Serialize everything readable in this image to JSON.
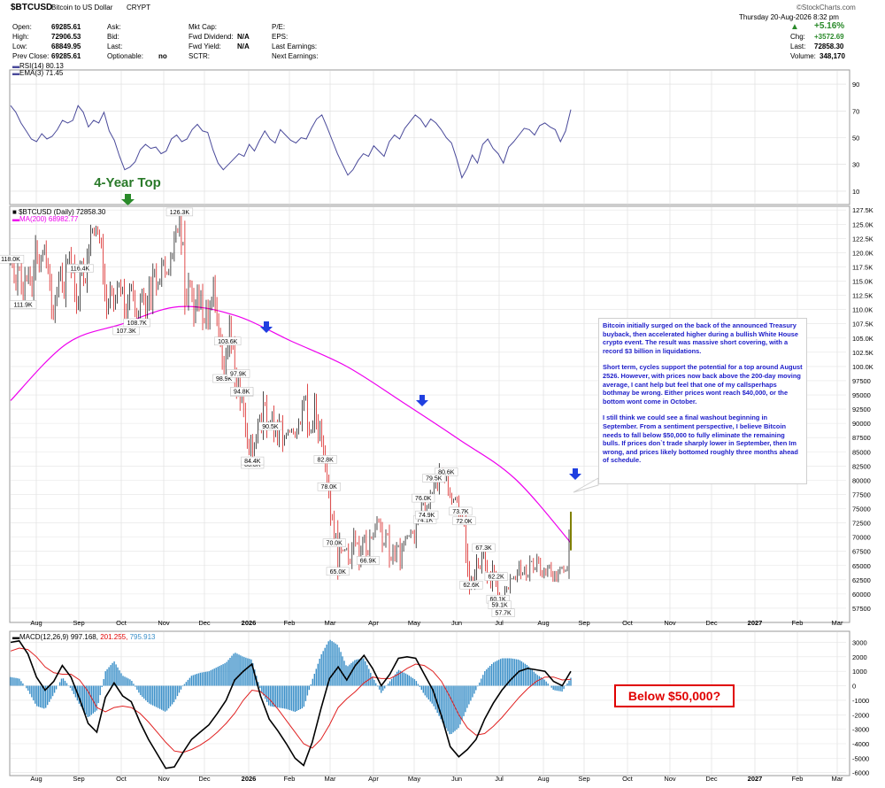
{
  "header": {
    "symbol": "$BTCUSD",
    "name": "Bitcoin to US Dollar",
    "exchange": "CRYPT",
    "brand": "©StockCharts.com",
    "datetime": "Thursday  20-Aug-2026  8:32 pm",
    "open_label": "Open:",
    "open": "69285.61",
    "high_label": "High:",
    "high": "72906.53",
    "low_label": "Low:",
    "low": "68849.95",
    "prev_label": "Prev Close:",
    "prev": "69285.61",
    "ask_label": "Ask:",
    "bid_label": "Bid:",
    "last_label": "Last:",
    "optionable_label": "Optionable:",
    "optionable": "no",
    "mktcap_label": "Mkt Cap:",
    "fwddiv_label": "Fwd Dividend:",
    "fwddiv": "N/A",
    "fwdyield_label": "Fwd Yield:",
    "fwdyield": "N/A",
    "sctr_label": "SCTR:",
    "pe_label": "P/E:",
    "eps_label": "EPS:",
    "lastearn_label": "Last Earnings:",
    "nextearn_label": "Next Earnings:",
    "pct_change": "+5.16%",
    "chg_label": "Chg:",
    "chg": "+3572.69",
    "last_price_label": "Last:",
    "last_price": "72858.30",
    "volume_label": "Volume:",
    "volume": "348,170"
  },
  "annotation_top": "4-Year Top",
  "note": {
    "p1": "Bitcoin initially surged on the back of the announced Treasury buyback, then accelerated higher during a bullish White House crypto event. The result was massive short covering, with a record $3 billion in liquidations.",
    "p2": "Short term, cycles support the potential for a top around August 2526. However, with prices now back above the 200-day moving average, I cant help but feel that one of my callsperhaps bothmay be wrong. Either prices wont reach $40,000, or the bottom wont come in October.",
    "p3": "I still think we could see a final washout beginning in September. From a sentiment perspective, I believe Bitcoin needs to fall below $50,000 to fully eliminate the remaining bulls. If prices don`t trade sharply lower in September, then Im wrong, and prices likely bottomed roughly three months ahead of schedule."
  },
  "below_label": "Below $50,000?",
  "colors": {
    "rsi": "#4a4a9a",
    "ma": "#ee00ee",
    "up": "#000000",
    "down": "#d40000",
    "hist": "#3a8fc8",
    "arrow_blue": "#1f3fe0",
    "arrow_green": "#2a8a2a",
    "title_green": "#2a7a2a",
    "last_bar": "#c8c800"
  },
  "chart_data": [
    {
      "type": "line",
      "title": "RSI(14) 80.13",
      "series": [
        {
          "name": "EMA(3) 71.45",
          "values": [
            74,
            69,
            61,
            55,
            49,
            47,
            53,
            49,
            51,
            56,
            63,
            61,
            63,
            74,
            69,
            58,
            63,
            61,
            69,
            55,
            48,
            36,
            26,
            28,
            32,
            41,
            45,
            42,
            43,
            38,
            40,
            49,
            52,
            47,
            49,
            56,
            60,
            55,
            54,
            41,
            31,
            26,
            30,
            34,
            38,
            36,
            45,
            40,
            48,
            55,
            49,
            46,
            56,
            52,
            48,
            46,
            50,
            49,
            57,
            64,
            67,
            58,
            48,
            38,
            30,
            22,
            26,
            33,
            38,
            36,
            44,
            40,
            36,
            47,
            52,
            49,
            57,
            62,
            67,
            64,
            58,
            64,
            61,
            56,
            50,
            46,
            34,
            20,
            27,
            37,
            31,
            45,
            49,
            42,
            38,
            31,
            43,
            47,
            52,
            57,
            56,
            52,
            59,
            61,
            58,
            56,
            47,
            55,
            71
          ]
        }
      ],
      "ylim": [
        0,
        100
      ],
      "yticks": [
        10,
        30,
        50,
        70,
        90
      ]
    },
    {
      "type": "candlestick",
      "title": "$BTCUSD (Daily) 72858.30",
      "ma_label": "MA(200) 68982.77",
      "close": [
        118000,
        117500,
        115500,
        114000,
        117400,
        117000,
        114000,
        112000,
        115800,
        115200,
        116800,
        115000,
        113100,
        117000,
        121200,
        119000,
        117300,
        118900,
        120000,
        121000,
        118400,
        116900,
        114400,
        110200,
        108800,
        111400,
        113200,
        115600,
        117000,
        114200,
        112600,
        117500,
        118500,
        119700,
        116800,
        117700,
        113300,
        110500,
        111800,
        116500,
        117900,
        115300,
        114800,
        118900,
        120700,
        123600,
        124100,
        123300,
        124300,
        123500,
        122200,
        121200,
        116500,
        113000,
        109800,
        111300,
        113800,
        112800,
        110600,
        112000,
        114100,
        114600,
        113000,
        113700,
        109900,
        107300,
        111000,
        113500,
        114200,
        112300,
        109800,
        108700,
        109500,
        111800,
        113100,
        111500,
        108400,
        111200,
        114400,
        111300,
        116000,
        116800,
        113800,
        114600,
        115200,
        117900,
        118500,
        116500,
        116300,
        116900,
        119100,
        119700,
        122500,
        124100,
        123700,
        125700,
        121500,
        121700,
        113000,
        111400,
        114900,
        114200,
        112200,
        108600,
        110800,
        113300,
        110800,
        112600,
        108300,
        107800,
        110500,
        107700,
        110400,
        111700,
        114500,
        111000,
        108300,
        106000,
        104200,
        100900,
        98800,
        101900,
        103400,
        107300,
        103800,
        103200,
        98500,
        95600,
        97700,
        93900,
        94700,
        92200,
        89000,
        86600,
        85100,
        87100,
        84800,
        86100,
        87500,
        89800,
        91000,
        89100,
        93600,
        93200,
        89200,
        90000,
        90400,
        91600,
        88200,
        89600,
        87200,
        90300,
        89900,
        86500,
        87500,
        88100,
        88700,
        88500,
        88900,
        88300,
        87700,
        88700,
        90200,
        89900,
        92800,
        94200,
        94700,
        89700,
        88400,
        88800,
        90000,
        93700,
        90400,
        87700,
        89600,
        87000,
        85000,
        82500,
        80000,
        77800,
        73800,
        73200,
        70000,
        70500,
        65000,
        69000,
        67700,
        67600,
        67800,
        68000,
        66000,
        65500,
        68000,
        70500,
        69000,
        68800,
        65600,
        67600,
        69300,
        70100,
        67500,
        67000,
        70000,
        69800,
        70500,
        71800,
        73100,
        72700,
        71400,
        68600,
        68900,
        70600,
        70400,
        66400,
        66000,
        67900,
        66400,
        68300,
        68500,
        65500,
        67900,
        68900,
        69800,
        70200,
        70200,
        71000,
        70700,
        69400,
        72400,
        73100,
        73800,
        75700,
        75900,
        74200,
        75200,
        75700,
        77500,
        77800,
        79100,
        80400,
        78800,
        81700,
        82000,
        81500,
        80100,
        80700,
        78300,
        77300,
        76200,
        76600,
        76900,
        76300,
        74000,
        73700,
        72700,
        72100,
        67500,
        64400,
        61300,
        62600,
        61600,
        63500,
        65900,
        64900,
        64500,
        66500,
        67300,
        65000,
        62800,
        63300,
        61700,
        64600,
        63400,
        61900,
        60000,
        59300,
        59300,
        58500,
        60500,
        61100,
        60900,
        62700,
        62700,
        63000,
        62600,
        63800,
        65200,
        63400,
        63700,
        64500,
        63000,
        63300,
        65700,
        65700,
        64300,
        64600,
        66300,
        65600,
        63900,
        63200,
        64200,
        63500,
        64600,
        65000,
        63600,
        62600,
        63600,
        62600,
        63800,
        64500,
        64700,
        64000,
        64200,
        64700,
        69285,
        72858
      ],
      "ma200": [
        94000,
        104000,
        107500,
        110500,
        109000,
        104500,
        100000,
        93700,
        87200,
        80300,
        69000
      ],
      "labels": [
        {
          "text": "111.9K",
          "value": 111900
        },
        {
          "text": "107.3K",
          "value": 107300
        },
        {
          "text": "118.0K",
          "value": 118000
        },
        {
          "text": "108.7K",
          "value": 108700
        },
        {
          "text": "126.3K",
          "value": 126300
        },
        {
          "text": "103.6K",
          "value": 103600
        },
        {
          "text": "116.4K",
          "value": 116400
        },
        {
          "text": "98.9K",
          "value": 98900
        },
        {
          "text": "80.6K",
          "value": 80600
        },
        {
          "text": "94.6K",
          "value": 94600
        },
        {
          "text": "83.8K",
          "value": 83800
        },
        {
          "text": "84.4K",
          "value": 84400
        },
        {
          "text": "94.8K",
          "value": 94800
        },
        {
          "text": "97.9K",
          "value": 97900
        },
        {
          "text": "90.5K",
          "value": 90500
        },
        {
          "text": "60.1K",
          "value": 60100
        },
        {
          "text": "62.6K",
          "value": 62600
        },
        {
          "text": "70.0K",
          "value": 70000
        },
        {
          "text": "74.1K",
          "value": 74100
        },
        {
          "text": "72.0K",
          "value": 72000
        },
        {
          "text": "76.0K",
          "value": 76000
        },
        {
          "text": "65.0K",
          "value": 65000
        },
        {
          "text": "73.7K",
          "value": 73700
        },
        {
          "text": "74.9K",
          "value": 74900
        },
        {
          "text": "79.5K",
          "value": 79500
        },
        {
          "text": "82.8K",
          "value": 82800
        },
        {
          "text": "78.0K",
          "value": 78000
        },
        {
          "text": "59.1K",
          "value": 59100
        },
        {
          "text": "67.3K",
          "value": 67300
        },
        {
          "text": "57.7K",
          "value": 57700
        },
        {
          "text": "66.9K",
          "value": 66900
        },
        {
          "text": "62.2K",
          "value": 62200
        }
      ],
      "ylim": [
        55000,
        128000
      ],
      "yticks": [
        "127.5K",
        "125.0K",
        "122.5K",
        "120.0K",
        "117.5K",
        "115.0K",
        "112.5K",
        "110.0K",
        "107.5K",
        "105.0K",
        "102.5K",
        "100.0K",
        "97500",
        "95000",
        "92500",
        "90000",
        "87500",
        "85000",
        "82500",
        "80000",
        "77500",
        "75000",
        "72500",
        "70000",
        "67500",
        "65000",
        "62500",
        "60000",
        "57500"
      ],
      "x_ticks": [
        "Aug",
        "Sep",
        "Oct",
        "Nov",
        "Dec",
        "2026",
        "Feb",
        "Mar",
        "Apr",
        "May",
        "Jun",
        "Jul",
        "Aug",
        "Sep",
        "Oct",
        "Nov",
        "Dec",
        "2027",
        "Feb",
        "Mar"
      ]
    },
    {
      "type": "line",
      "title": "MACD(12,26,9) 997.168, 201.255, 795.913",
      "title_parts": [
        "MACD(12,26,9)",
        "997.168,",
        "201.255,",
        "795.913"
      ],
      "macd": [
        3000,
        3100,
        2200,
        600,
        -300,
        300,
        1400,
        600,
        -900,
        -2600,
        -3200,
        -800,
        200,
        -700,
        -1100,
        -2500,
        -3700,
        -4700,
        -5700,
        -5600,
        -4600,
        -3700,
        -3200,
        -2700,
        -1900,
        -1000,
        400,
        1000,
        1500,
        -700,
        -2300,
        -3100,
        -4000,
        -5000,
        -5500,
        -3900,
        -1600,
        500,
        1300,
        400,
        1400,
        2100,
        1200,
        0,
        800,
        1900,
        2000,
        1900,
        800,
        -300,
        -2100,
        -4200,
        -4900,
        -4400,
        -3700,
        -2300,
        -1200,
        -300,
        400,
        1000,
        1200,
        1100,
        1000,
        300,
        0,
        1000
      ],
      "signal": [
        2400,
        2600,
        2500,
        2000,
        1300,
        900,
        800,
        800,
        400,
        -400,
        -1500,
        -1800,
        -1500,
        -1400,
        -1500,
        -1900,
        -2500,
        -3200,
        -3900,
        -4500,
        -4600,
        -4400,
        -4100,
        -3700,
        -3200,
        -2600,
        -1900,
        -1000,
        -300,
        -400,
        -900,
        -1600,
        -2400,
        -3200,
        -4000,
        -4300,
        -3700,
        -2700,
        -1500,
        -900,
        -400,
        200,
        600,
        500,
        500,
        800,
        1200,
        1500,
        1400,
        1000,
        300,
        -800,
        -2000,
        -2900,
        -3400,
        -3300,
        -2800,
        -2200,
        -1500,
        -800,
        -200,
        300,
        600,
        600,
        400,
        450
      ],
      "ylim": [
        -6200,
        3700
      ],
      "yticks": [
        3000,
        2000,
        1000,
        0,
        -1000,
        -2000,
        -3000,
        -4000,
        -5000,
        -6000
      ]
    }
  ]
}
